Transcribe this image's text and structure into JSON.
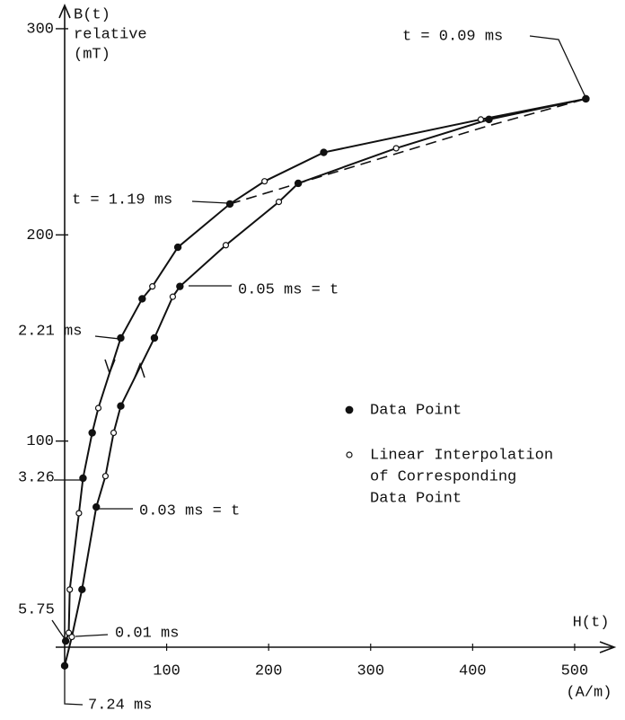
{
  "chart_data": {
    "type": "line",
    "ylabel": [
      "B(t)",
      "relative",
      "(mT)"
    ],
    "xlabel": [
      "H(t)",
      "(A/m)"
    ],
    "xlim": [
      0,
      530
    ],
    "ylim": [
      -10,
      310
    ],
    "xticks": [
      100,
      200,
      300,
      400,
      500
    ],
    "yticks": [
      100,
      200,
      300
    ],
    "color": "#111111",
    "series": [
      {
        "x": [
          0,
          7,
          17,
          31,
          40,
          48,
          55,
          88,
          106,
          113,
          158,
          210,
          229,
          325,
          416,
          511
        ],
        "y": [
          -9,
          5,
          28,
          68,
          83,
          104,
          117,
          150,
          170,
          175,
          195,
          216,
          225,
          242,
          256,
          266
        ],
        "markers": [
          "filled",
          "open",
          "filled",
          "filled",
          "open",
          "open",
          "filled",
          "filled",
          "open",
          "filled",
          "open",
          "open",
          "filled",
          "open",
          "filled",
          "filled"
        ]
      },
      {
        "x": [
          511,
          408,
          254,
          196,
          162,
          111,
          86,
          76,
          55,
          33,
          27,
          18,
          14,
          5,
          4,
          1
        ],
        "y": [
          266,
          256,
          240,
          226,
          215,
          194,
          175,
          169,
          150,
          116,
          104,
          82,
          65,
          28,
          7,
          3
        ],
        "markers": [
          "filled",
          "open",
          "filled",
          "open",
          "filled",
          "filled",
          "open",
          "filled",
          "filled",
          "open",
          "filled",
          "filled",
          "open",
          "open",
          "open",
          "filled"
        ]
      },
      {
        "x": [
          162,
          229,
          416,
          511
        ],
        "y": [
          215,
          225,
          253,
          266
        ],
        "dashed": true
      }
    ],
    "legend": [
      {
        "marker": "filled",
        "label": [
          "Data Point"
        ]
      },
      {
        "marker": "open",
        "label": [
          "Linear Interpolation",
          "of Corresponding",
          "Data Point"
        ]
      }
    ],
    "annotations": [
      "t = 0.09 ms",
      "t = 1.19 ms",
      "0.05 ms = t",
      "2.21 ms",
      "3.26",
      "0.03 ms = t",
      "5.75",
      "0.01 ms",
      "7.24 ms"
    ]
  }
}
